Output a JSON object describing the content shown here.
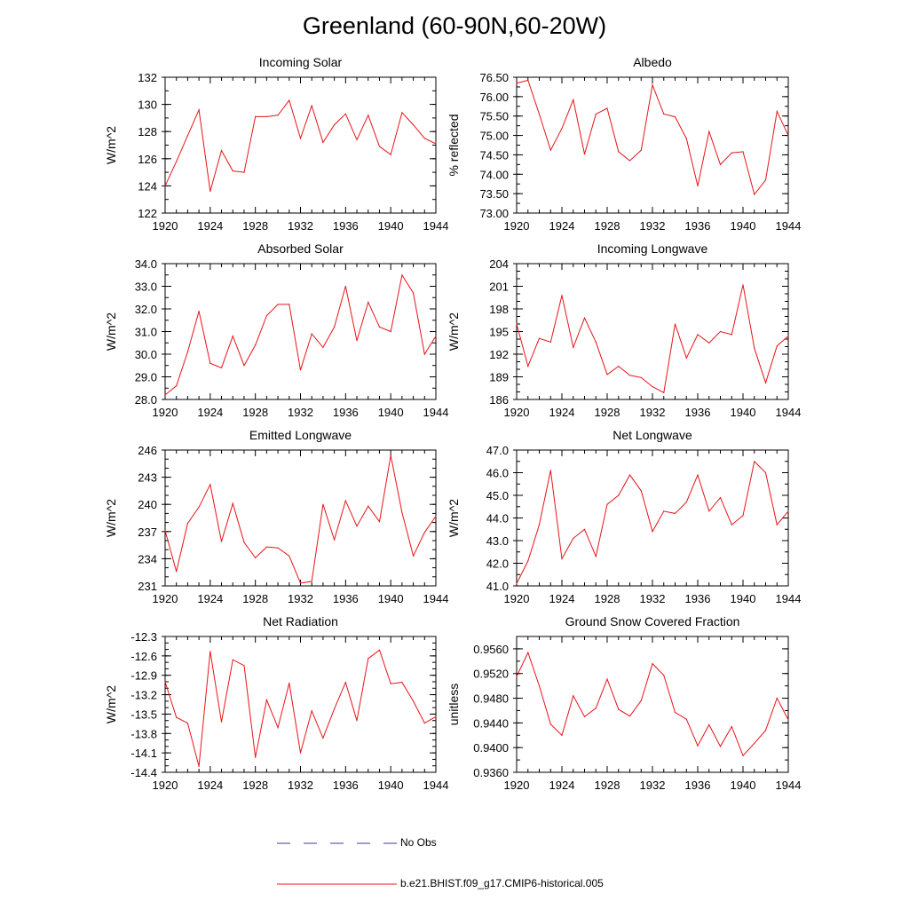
{
  "title": "Greenland (60-90N,60-20W)",
  "legend": {
    "obs_label": "No Obs",
    "model_label": "b.e21.BHIST.f09_g17.CMIP6-historical.005",
    "obs_color": "#3a3aa0",
    "model_color": "#e8131a"
  },
  "x_ticks": [
    "1920",
    "1924",
    "1928",
    "1932",
    "1936",
    "1940",
    "1944"
  ],
  "chart_data": [
    {
      "type": "line",
      "title": "Incoming Solar",
      "ylabel": "W/m^2",
      "xlim": [
        1920,
        1944
      ],
      "ylim": [
        122,
        132
      ],
      "yticks": [
        "122",
        "124",
        "126",
        "128",
        "130",
        "132"
      ],
      "yminor": 1,
      "x": [
        1920,
        1921,
        1922,
        1923,
        1924,
        1925,
        1926,
        1927,
        1928,
        1929,
        1930,
        1931,
        1932,
        1933,
        1934,
        1935,
        1936,
        1937,
        1938,
        1939,
        1940,
        1941,
        1942,
        1943,
        1944
      ],
      "values": [
        124.0,
        125.8,
        127.7,
        129.6,
        123.6,
        126.6,
        125.1,
        125.0,
        129.1,
        129.1,
        129.2,
        130.3,
        127.5,
        129.9,
        127.2,
        128.5,
        129.3,
        127.4,
        129.2,
        126.9,
        126.3,
        129.4,
        128.5,
        127.5,
        127.1
      ]
    },
    {
      "type": "line",
      "title": "Albedo",
      "ylabel": "% reflected",
      "xlim": [
        1920,
        1944
      ],
      "ylim": [
        73.0,
        76.5
      ],
      "yticks": [
        "73.00",
        "73.50",
        "74.00",
        "74.50",
        "75.00",
        "75.50",
        "76.00",
        "76.50"
      ],
      "yminor": 0.25,
      "x": [
        1920,
        1921,
        1922,
        1923,
        1924,
        1925,
        1926,
        1927,
        1928,
        1929,
        1930,
        1931,
        1932,
        1933,
        1934,
        1935,
        1936,
        1937,
        1938,
        1939,
        1940,
        1941,
        1942,
        1943,
        1944
      ],
      "values": [
        76.35,
        76.42,
        75.55,
        74.62,
        75.18,
        75.92,
        74.52,
        75.55,
        75.7,
        74.58,
        74.35,
        74.62,
        76.3,
        75.55,
        75.48,
        74.92,
        73.7,
        75.1,
        74.25,
        74.55,
        74.58,
        73.48,
        73.85,
        75.62,
        75.0
      ]
    },
    {
      "type": "line",
      "title": "Absorbed Solar",
      "ylabel": "W/m^2",
      "xlim": [
        1920,
        1944
      ],
      "ylim": [
        28.0,
        34.0
      ],
      "yticks": [
        "28.0",
        "29.0",
        "30.0",
        "31.0",
        "32.0",
        "33.0",
        "34.0"
      ],
      "yminor": 0.5,
      "x": [
        1920,
        1921,
        1922,
        1923,
        1924,
        1925,
        1926,
        1927,
        1928,
        1929,
        1930,
        1931,
        1932,
        1933,
        1934,
        1935,
        1936,
        1937,
        1938,
        1939,
        1940,
        1941,
        1942,
        1943,
        1944
      ],
      "values": [
        28.2,
        28.6,
        30.1,
        31.9,
        29.6,
        29.4,
        30.8,
        29.5,
        30.4,
        31.7,
        32.2,
        32.2,
        29.3,
        30.9,
        30.3,
        31.2,
        33.0,
        30.6,
        32.3,
        31.2,
        31.0,
        33.5,
        32.7,
        30.0,
        30.8
      ]
    },
    {
      "type": "line",
      "title": "Incoming Longwave",
      "ylabel": "W/m^2",
      "xlim": [
        1920,
        1944
      ],
      "ylim": [
        186,
        204
      ],
      "yticks": [
        "186",
        "189",
        "192",
        "195",
        "198",
        "201",
        "204"
      ],
      "yminor": 1,
      "x": [
        1920,
        1921,
        1922,
        1923,
        1924,
        1925,
        1926,
        1927,
        1928,
        1929,
        1930,
        1931,
        1932,
        1933,
        1934,
        1935,
        1936,
        1937,
        1938,
        1939,
        1940,
        1941,
        1942,
        1943,
        1944
      ],
      "values": [
        196.0,
        190.4,
        194.1,
        193.6,
        199.8,
        192.9,
        196.8,
        193.6,
        189.3,
        190.4,
        189.2,
        188.9,
        187.7,
        186.9,
        196.0,
        191.5,
        194.6,
        193.5,
        195.0,
        194.6,
        201.2,
        192.8,
        188.2,
        193.1,
        194.4
      ]
    },
    {
      "type": "line",
      "title": "Emitted Longwave",
      "ylabel": "W/m^2",
      "xlim": [
        1920,
        1944
      ],
      "ylim": [
        231,
        246
      ],
      "yticks": [
        "231",
        "234",
        "237",
        "240",
        "243",
        "246"
      ],
      "yminor": 1,
      "x": [
        1920,
        1921,
        1922,
        1923,
        1924,
        1925,
        1926,
        1927,
        1928,
        1929,
        1930,
        1931,
        1932,
        1933,
        1934,
        1935,
        1936,
        1937,
        1938,
        1939,
        1940,
        1941,
        1942,
        1943,
        1944
      ],
      "values": [
        237.1,
        232.6,
        237.9,
        239.7,
        242.2,
        235.9,
        240.1,
        235.8,
        234.1,
        235.3,
        235.2,
        234.3,
        231.3,
        231.5,
        240.0,
        236.1,
        240.4,
        237.6,
        239.8,
        238.1,
        245.4,
        239.1,
        234.3,
        236.9,
        238.7
      ]
    },
    {
      "type": "line",
      "title": "Net Longwave",
      "ylabel": "W/m^2",
      "xlim": [
        1920,
        1944
      ],
      "ylim": [
        41.0,
        47.0
      ],
      "yticks": [
        "41.0",
        "42.0",
        "43.0",
        "44.0",
        "45.0",
        "46.0",
        "47.0"
      ],
      "yminor": 0.5,
      "x": [
        1920,
        1921,
        1922,
        1923,
        1924,
        1925,
        1926,
        1927,
        1928,
        1929,
        1930,
        1931,
        1932,
        1933,
        1934,
        1935,
        1936,
        1937,
        1938,
        1939,
        1940,
        1941,
        1942,
        1943,
        1944
      ],
      "values": [
        41.1,
        42.1,
        43.7,
        46.1,
        42.2,
        43.1,
        43.5,
        42.3,
        44.6,
        45.0,
        45.9,
        45.2,
        43.4,
        44.3,
        44.2,
        44.7,
        45.9,
        44.3,
        44.9,
        43.7,
        44.1,
        46.5,
        46.0,
        43.7,
        44.3
      ]
    },
    {
      "type": "line",
      "title": "Net Radiation",
      "ylabel": "W/m^2",
      "xlim": [
        1920,
        1944
      ],
      "ylim": [
        -14.4,
        -12.3
      ],
      "yticks": [
        "-14.4",
        "-14.1",
        "-13.8",
        "-13.5",
        "-13.2",
        "-12.9",
        "-12.6",
        "-12.3"
      ],
      "yminor": 0.1,
      "x": [
        1920,
        1921,
        1922,
        1923,
        1924,
        1925,
        1926,
        1927,
        1928,
        1929,
        1930,
        1931,
        1932,
        1933,
        1934,
        1935,
        1936,
        1937,
        1938,
        1939,
        1940,
        1941,
        1942,
        1943,
        1944
      ],
      "values": [
        -13.0,
        -13.55,
        -13.64,
        -14.31,
        -12.53,
        -13.62,
        -12.66,
        -12.75,
        -14.17,
        -13.28,
        -13.71,
        -13.02,
        -14.1,
        -13.45,
        -13.87,
        -13.42,
        -13.01,
        -13.6,
        -12.64,
        -12.51,
        -13.03,
        -13.01,
        -13.3,
        -13.64,
        -13.54
      ]
    },
    {
      "type": "line",
      "title": "Ground Snow Covered Fraction",
      "ylabel": "unitless",
      "xlim": [
        1920,
        1944
      ],
      "ylim": [
        0.936,
        0.958
      ],
      "yticks": [
        "0.9360",
        "0.9400",
        "0.9440",
        "0.9480",
        "0.9520",
        "0.9560"
      ],
      "yminor": 0.002,
      "x": [
        1920,
        1921,
        1922,
        1923,
        1924,
        1925,
        1926,
        1927,
        1928,
        1929,
        1930,
        1931,
        1932,
        1933,
        1934,
        1935,
        1936,
        1937,
        1938,
        1939,
        1940,
        1941,
        1942,
        1943,
        1944
      ],
      "values": [
        0.9515,
        0.9554,
        0.95,
        0.9438,
        0.942,
        0.9484,
        0.945,
        0.9464,
        0.9511,
        0.9462,
        0.9451,
        0.9476,
        0.9536,
        0.9517,
        0.9457,
        0.9446,
        0.9403,
        0.9437,
        0.9402,
        0.9434,
        0.9387,
        0.9407,
        0.9428,
        0.948,
        0.9445
      ]
    }
  ]
}
